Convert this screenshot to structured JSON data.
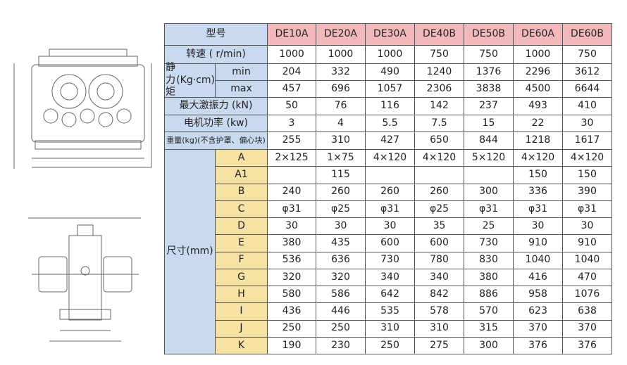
{
  "table": {
    "header": {
      "label": "型号",
      "models": [
        "DE10A",
        "DE20A",
        "DE30A",
        "DE40B",
        "DE50B",
        "DE60A",
        "DE60B"
      ]
    },
    "speed": {
      "label": "转速 ( r/min)",
      "values": [
        1000,
        1000,
        1000,
        750,
        750,
        1000,
        750
      ]
    },
    "torque": {
      "label": [
        "静力矩",
        "(Kg·cm)"
      ],
      "rows": [
        {
          "label": "min",
          "values": [
            204,
            332,
            490,
            1240,
            1376,
            2296,
            3612
          ]
        },
        {
          "label": "max",
          "values": [
            457,
            696,
            1057,
            2306,
            3838,
            4500,
            6644
          ]
        }
      ]
    },
    "force": {
      "label": "最大激振力 (kN)",
      "values": [
        50,
        76,
        116,
        142,
        237,
        493,
        410
      ]
    },
    "power": {
      "label": "电机功率 (kw)",
      "values": [
        3,
        4,
        5.5,
        7.5,
        15,
        22,
        30
      ]
    },
    "weight": {
      "label": "重量(kg)(不含护罩、偏心块)",
      "values": [
        255,
        310,
        427,
        650,
        844,
        1218,
        1617
      ]
    },
    "size": {
      "label": [
        "尺寸",
        "(mm)"
      ],
      "rows": [
        {
          "label": "A",
          "values": [
            "2×125",
            "1×75",
            "4×120",
            "4×120",
            "5×120",
            "4×120",
            "4×120"
          ]
        },
        {
          "label": "A1",
          "values": [
            null,
            115,
            null,
            null,
            null,
            150,
            150
          ]
        },
        {
          "label": "B",
          "values": [
            240,
            260,
            260,
            260,
            300,
            336,
            390
          ]
        },
        {
          "label": "C",
          "values": [
            "φ31",
            "φ25",
            "φ31",
            "φ25",
            "φ31",
            "φ31",
            "φ31"
          ]
        },
        {
          "label": "D",
          "values": [
            30,
            30,
            30,
            35,
            25,
            30,
            30
          ]
        },
        {
          "label": "E",
          "values": [
            380,
            435,
            600,
            600,
            730,
            910,
            910
          ]
        },
        {
          "label": "F",
          "values": [
            536,
            636,
            730,
            780,
            830,
            1040,
            1040
          ]
        },
        {
          "label": "G",
          "values": [
            320,
            320,
            340,
            340,
            380,
            416,
            470
          ]
        },
        {
          "label": "H",
          "values": [
            580,
            586,
            642,
            842,
            886,
            958,
            1076
          ]
        },
        {
          "label": "I",
          "values": [
            436,
            446,
            535,
            578,
            570,
            623,
            638
          ]
        },
        {
          "label": "J",
          "values": [
            250,
            250,
            310,
            310,
            315,
            370,
            370
          ]
        },
        {
          "label": "K",
          "values": [
            190,
            230,
            250,
            275,
            300,
            376,
            376
          ]
        }
      ]
    }
  }
}
